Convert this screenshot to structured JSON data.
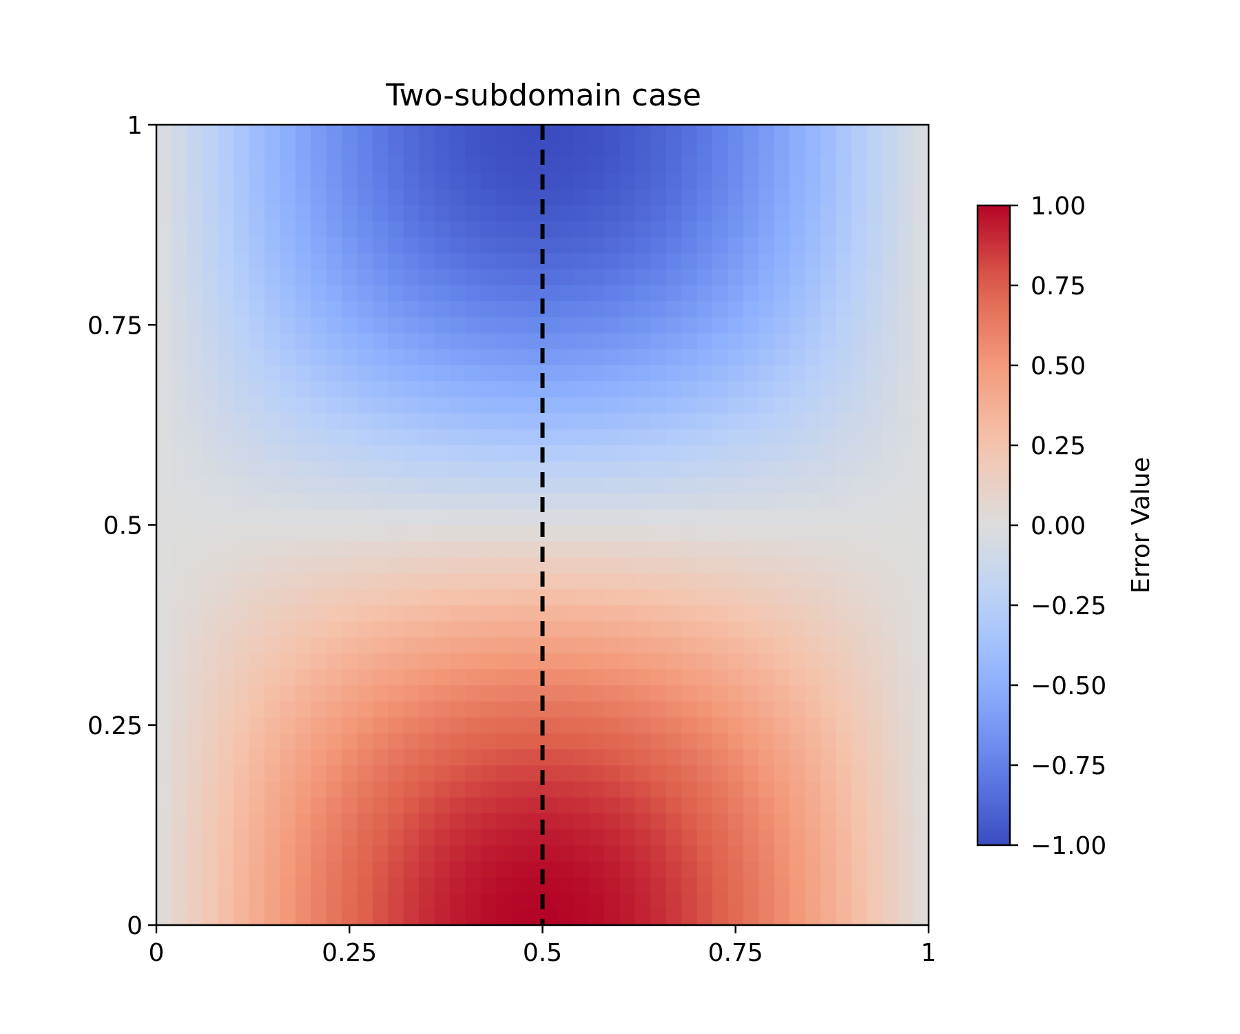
{
  "chart_data": {
    "type": "heatmap",
    "title": "Two-subdomain case",
    "xlabel": "",
    "ylabel": "",
    "xlim": [
      0,
      1
    ],
    "ylim": [
      0,
      1
    ],
    "x_ticks": [
      {
        "value": 0,
        "label": "0"
      },
      {
        "value": 0.25,
        "label": "0.25"
      },
      {
        "value": 0.5,
        "label": "0.5"
      },
      {
        "value": 0.75,
        "label": "0.75"
      },
      {
        "value": 1,
        "label": "1"
      }
    ],
    "y_ticks": [
      {
        "value": 0,
        "label": "0"
      },
      {
        "value": 0.25,
        "label": "0.25"
      },
      {
        "value": 0.5,
        "label": "0.5"
      },
      {
        "value": 0.75,
        "label": "0.75"
      },
      {
        "value": 1,
        "label": "1"
      }
    ],
    "colormap": "coolwarm",
    "value_range": [
      -1,
      1
    ],
    "field": "sin(pi*x) * cos(pi*y)",
    "grid": false,
    "colorbar": {
      "label": "Error Value",
      "range": [
        -1,
        1
      ],
      "ticks": [
        {
          "value": 1,
          "label": "1.00"
        },
        {
          "value": 0.75,
          "label": "0.75"
        },
        {
          "value": 0.5,
          "label": "0.50"
        },
        {
          "value": 0.25,
          "label": "0.25"
        },
        {
          "value": 0,
          "label": "0.00"
        },
        {
          "value": -0.25,
          "label": "−0.25"
        },
        {
          "value": -0.5,
          "label": "−0.50"
        },
        {
          "value": -0.75,
          "label": "−0.75"
        },
        {
          "value": -1,
          "label": "−1.00"
        }
      ]
    },
    "annotations": [
      {
        "type": "vertical-dashed-line",
        "x": 0.5,
        "color": "#000000"
      }
    ]
  }
}
